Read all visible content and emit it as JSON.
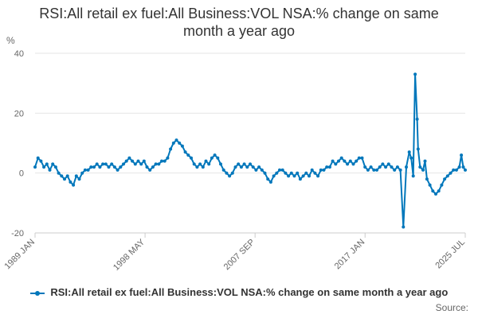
{
  "chart_data": {
    "type": "line",
    "title": "RSI:All retail ex fuel:All Business:VOL NSA:% change on same month a year ago",
    "ylabel": "%",
    "xlabel": "",
    "ylim": [
      -20,
      40
    ],
    "yticks": [
      -20,
      0,
      20,
      40
    ],
    "x_range": [
      "1989-01",
      "2025-07"
    ],
    "xticks": [
      "1989 JAN",
      "1998 MAY",
      "2007 SEP",
      "2017 JAN",
      "2025 JUL"
    ],
    "grid": "horizontal",
    "legend_position": "bottom",
    "series": [
      {
        "name": "RSI:All retail ex fuel:All Business:VOL NSA:% change on same month a year ago",
        "color": "#0077bb",
        "points": [
          [
            "1989-01",
            2
          ],
          [
            "1989-04",
            5
          ],
          [
            "1989-07",
            4
          ],
          [
            "1989-10",
            2
          ],
          [
            "1990-01",
            3
          ],
          [
            "1990-04",
            1
          ],
          [
            "1990-07",
            3
          ],
          [
            "1990-10",
            2
          ],
          [
            "1991-01",
            0
          ],
          [
            "1991-04",
            -1
          ],
          [
            "1991-07",
            -2
          ],
          [
            "1991-10",
            -1
          ],
          [
            "1992-01",
            -3
          ],
          [
            "1992-04",
            -4
          ],
          [
            "1992-07",
            -1
          ],
          [
            "1992-10",
            -2
          ],
          [
            "1993-01",
            0
          ],
          [
            "1993-04",
            1
          ],
          [
            "1993-07",
            1
          ],
          [
            "1993-10",
            2
          ],
          [
            "1994-01",
            2
          ],
          [
            "1994-04",
            3
          ],
          [
            "1994-07",
            2
          ],
          [
            "1994-10",
            3
          ],
          [
            "1995-01",
            3
          ],
          [
            "1995-04",
            2
          ],
          [
            "1995-07",
            3
          ],
          [
            "1995-10",
            2
          ],
          [
            "1996-01",
            1
          ],
          [
            "1996-04",
            2
          ],
          [
            "1996-07",
            3
          ],
          [
            "1996-10",
            4
          ],
          [
            "1997-01",
            5
          ],
          [
            "1997-04",
            4
          ],
          [
            "1997-07",
            3
          ],
          [
            "1997-10",
            4
          ],
          [
            "1998-01",
            3
          ],
          [
            "1998-04",
            4
          ],
          [
            "1998-07",
            2
          ],
          [
            "1998-10",
            1
          ],
          [
            "1999-01",
            2
          ],
          [
            "1999-04",
            3
          ],
          [
            "1999-07",
            3
          ],
          [
            "1999-10",
            4
          ],
          [
            "2000-01",
            4
          ],
          [
            "2000-04",
            5
          ],
          [
            "2000-07",
            8
          ],
          [
            "2000-10",
            10
          ],
          [
            "2001-01",
            11
          ],
          [
            "2001-04",
            10
          ],
          [
            "2001-07",
            9
          ],
          [
            "2001-10",
            7
          ],
          [
            "2002-01",
            6
          ],
          [
            "2002-04",
            5
          ],
          [
            "2002-07",
            3
          ],
          [
            "2002-10",
            2
          ],
          [
            "2003-01",
            3
          ],
          [
            "2003-04",
            2
          ],
          [
            "2003-07",
            4
          ],
          [
            "2003-10",
            3
          ],
          [
            "2004-01",
            5
          ],
          [
            "2004-04",
            6
          ],
          [
            "2004-07",
            5
          ],
          [
            "2004-10",
            3
          ],
          [
            "2005-01",
            1
          ],
          [
            "2005-04",
            0
          ],
          [
            "2005-07",
            -1
          ],
          [
            "2005-10",
            0
          ],
          [
            "2006-01",
            2
          ],
          [
            "2006-04",
            3
          ],
          [
            "2006-07",
            2
          ],
          [
            "2006-10",
            3
          ],
          [
            "2007-01",
            2
          ],
          [
            "2007-04",
            3
          ],
          [
            "2007-07",
            2
          ],
          [
            "2007-10",
            1
          ],
          [
            "2008-01",
            2
          ],
          [
            "2008-04",
            1
          ],
          [
            "2008-07",
            0
          ],
          [
            "2008-10",
            -2
          ],
          [
            "2009-01",
            -3
          ],
          [
            "2009-04",
            -1
          ],
          [
            "2009-07",
            0
          ],
          [
            "2009-10",
            1
          ],
          [
            "2010-01",
            1
          ],
          [
            "2010-04",
            0
          ],
          [
            "2010-07",
            -1
          ],
          [
            "2010-10",
            0
          ],
          [
            "2011-01",
            -1
          ],
          [
            "2011-04",
            0
          ],
          [
            "2011-07",
            -2
          ],
          [
            "2011-10",
            -1
          ],
          [
            "2012-01",
            0
          ],
          [
            "2012-04",
            -1
          ],
          [
            "2012-07",
            1
          ],
          [
            "2012-10",
            0
          ],
          [
            "2013-01",
            -1
          ],
          [
            "2013-04",
            1
          ],
          [
            "2013-07",
            1
          ],
          [
            "2013-10",
            2
          ],
          [
            "2014-01",
            2
          ],
          [
            "2014-04",
            4
          ],
          [
            "2014-07",
            3
          ],
          [
            "2014-10",
            4
          ],
          [
            "2015-01",
            5
          ],
          [
            "2015-04",
            4
          ],
          [
            "2015-07",
            3
          ],
          [
            "2015-10",
            4
          ],
          [
            "2016-01",
            3
          ],
          [
            "2016-04",
            4
          ],
          [
            "2016-07",
            5
          ],
          [
            "2016-10",
            5
          ],
          [
            "2017-01",
            2
          ],
          [
            "2017-04",
            1
          ],
          [
            "2017-07",
            2
          ],
          [
            "2017-10",
            1
          ],
          [
            "2018-01",
            1
          ],
          [
            "2018-04",
            2
          ],
          [
            "2018-07",
            3
          ],
          [
            "2018-10",
            2
          ],
          [
            "2019-01",
            3
          ],
          [
            "2019-04",
            2
          ],
          [
            "2019-07",
            1
          ],
          [
            "2019-10",
            2
          ],
          [
            "2020-01",
            1
          ],
          [
            "2020-04",
            -18
          ],
          [
            "2020-07",
            2
          ],
          [
            "2020-10",
            7
          ],
          [
            "2020-12",
            5
          ],
          [
            "2021-02",
            -1
          ],
          [
            "2021-04",
            33
          ],
          [
            "2021-06",
            18
          ],
          [
            "2021-07",
            8
          ],
          [
            "2021-09",
            2
          ],
          [
            "2021-12",
            1
          ],
          [
            "2022-02",
            4
          ],
          [
            "2022-04",
            -2
          ],
          [
            "2022-07",
            -4
          ],
          [
            "2022-10",
            -6
          ],
          [
            "2023-01",
            -7
          ],
          [
            "2023-04",
            -6
          ],
          [
            "2023-07",
            -4
          ],
          [
            "2023-10",
            -2
          ],
          [
            "2024-01",
            -1
          ],
          [
            "2024-04",
            0
          ],
          [
            "2024-07",
            1
          ],
          [
            "2024-10",
            1
          ],
          [
            "2025-01",
            2
          ],
          [
            "2025-03",
            6
          ],
          [
            "2025-05",
            2
          ],
          [
            "2025-07",
            1
          ]
        ]
      }
    ]
  },
  "source_label": "Source:"
}
